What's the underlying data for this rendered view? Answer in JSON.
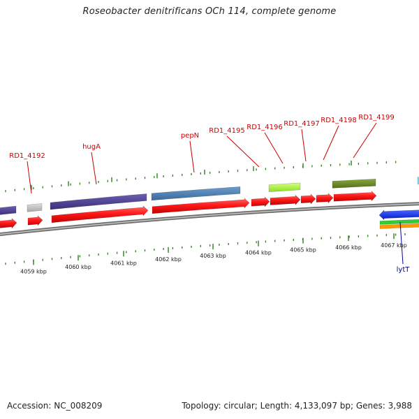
{
  "title": "Roseobacter denitrificans OCh 114, complete genome",
  "footer": {
    "accession": "Accession: NC_008209",
    "summary": "Topology: circular; Length: 4,133,097 bp; Genes: 3,988"
  },
  "colors": {
    "background": "#ffffff",
    "backbone": "#8a8a8a",
    "tick": "#2e7d1e",
    "label_red": "#cc0000",
    "label_blue": "#000099",
    "cds_red": "#ff1a1a",
    "purple": "#4b3f8f",
    "steelblue": "#4a7fb5",
    "lightgray": "#c8c8c8",
    "lime": "#b0ff3a",
    "olive": "#6b8a25",
    "blue": "#0a2aff",
    "green": "#33cc33",
    "orange": "#ff9900"
  },
  "kbp_labels": [
    "4059 kbp",
    "4060 kbp",
    "4061 kbp",
    "4062 kbp",
    "4063 kbp",
    "4064 kbp",
    "4065 kbp",
    "4066 kbp",
    "4067 kbp"
  ],
  "gene_labels": [
    {
      "id": "rd1-4192",
      "text": "RD1_4192",
      "color": "red"
    },
    {
      "id": "huga",
      "text": "hugA",
      "color": "red"
    },
    {
      "id": "pepn",
      "text": "pepN",
      "color": "red"
    },
    {
      "id": "rd1-4195",
      "text": "RD1_4195",
      "color": "red"
    },
    {
      "id": "rd1-4196",
      "text": "RD1_4196",
      "color": "red"
    },
    {
      "id": "rd1-4197",
      "text": "RD1_4197",
      "color": "red"
    },
    {
      "id": "rd1-4198",
      "text": "RD1_4198",
      "color": "red"
    },
    {
      "id": "rd1-4199",
      "text": "RD1_4199",
      "color": "red"
    },
    {
      "id": "lytt",
      "text": "lytT",
      "color": "blue"
    }
  ]
}
